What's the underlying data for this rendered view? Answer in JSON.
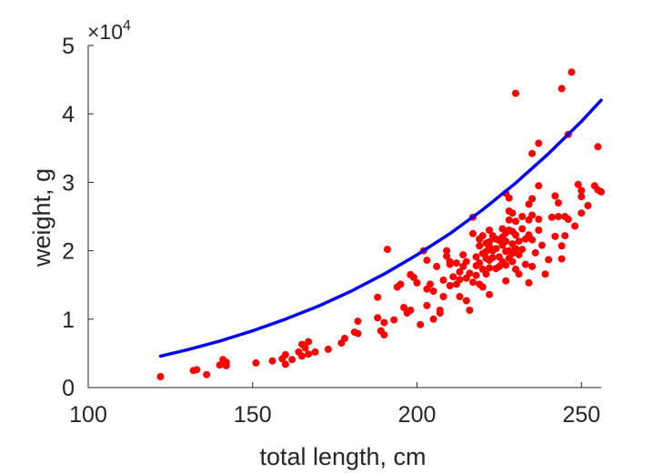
{
  "chart_data": {
    "type": "scatter",
    "xlabel": "total length, cm",
    "ylabel": "weight, g",
    "y_exponent_label": {
      "base": "×10",
      "power": "4"
    },
    "xlim": [
      100,
      256
    ],
    "ylim": [
      0,
      50000
    ],
    "x_ticks": [
      100,
      150,
      200,
      250
    ],
    "y_ticks": [
      0,
      10000,
      20000,
      30000,
      40000,
      50000
    ],
    "y_tick_labels": [
      "0",
      "1",
      "2",
      "3",
      "4",
      "5"
    ],
    "grid": false,
    "colors": {
      "points": "#ff0000",
      "curve": "#0000ff",
      "axis": "#262626"
    },
    "points": [
      [
        122,
        1600
      ],
      [
        132,
        2500
      ],
      [
        133,
        2600
      ],
      [
        136,
        1900
      ],
      [
        140,
        3300
      ],
      [
        141,
        4100
      ],
      [
        142,
        3700
      ],
      [
        142,
        3200
      ],
      [
        151,
        3600
      ],
      [
        156,
        3900
      ],
      [
        159,
        4200
      ],
      [
        160,
        4800
      ],
      [
        160,
        3400
      ],
      [
        162,
        4100
      ],
      [
        164,
        5200
      ],
      [
        165,
        6300
      ],
      [
        165,
        4600
      ],
      [
        166,
        5800
      ],
      [
        167,
        6700
      ],
      [
        167,
        4900
      ],
      [
        169,
        5200
      ],
      [
        173,
        5600
      ],
      [
        177,
        6500
      ],
      [
        178,
        7200
      ],
      [
        181,
        8100
      ],
      [
        182,
        7900
      ],
      [
        182,
        9700
      ],
      [
        188,
        13200
      ],
      [
        188,
        10200
      ],
      [
        189,
        8300
      ],
      [
        190,
        9500
      ],
      [
        190,
        7700
      ],
      [
        191,
        20200
      ],
      [
        193,
        9900
      ],
      [
        194,
        14700
      ],
      [
        195,
        15100
      ],
      [
        196,
        11700
      ],
      [
        197,
        10900
      ],
      [
        198,
        11300
      ],
      [
        198,
        16500
      ],
      [
        199,
        16100
      ],
      [
        200,
        15300
      ],
      [
        201,
        9200
      ],
      [
        202,
        20000
      ],
      [
        203,
        14400
      ],
      [
        203,
        12000
      ],
      [
        203,
        18600
      ],
      [
        204,
        15100
      ],
      [
        205,
        14100
      ],
      [
        205,
        10000
      ],
      [
        206,
        17700
      ],
      [
        207,
        10900
      ],
      [
        207,
        11300
      ],
      [
        208,
        13300
      ],
      [
        208,
        15700
      ],
      [
        209,
        19200
      ],
      [
        209,
        20000
      ],
      [
        210,
        14900
      ],
      [
        210,
        18000
      ],
      [
        210,
        18400
      ],
      [
        211,
        16200
      ],
      [
        212,
        15100
      ],
      [
        212,
        18200
      ],
      [
        213,
        16900
      ],
      [
        213,
        13300
      ],
      [
        213,
        15800
      ],
      [
        214,
        17700
      ],
      [
        214,
        19400
      ],
      [
        215,
        12700
      ],
      [
        215,
        16000
      ],
      [
        215,
        18400
      ],
      [
        216,
        16700
      ],
      [
        216,
        11300
      ],
      [
        217,
        24900
      ],
      [
        217,
        22500
      ],
      [
        217,
        15400
      ],
      [
        218,
        19100
      ],
      [
        218,
        17800
      ],
      [
        218,
        16400
      ],
      [
        219,
        21700
      ],
      [
        219,
        20700
      ],
      [
        219,
        18200
      ],
      [
        219,
        15100
      ],
      [
        220,
        22200
      ],
      [
        220,
        19600
      ],
      [
        220,
        17300
      ],
      [
        220,
        14700
      ],
      [
        221,
        21100
      ],
      [
        221,
        19900
      ],
      [
        221,
        18900
      ],
      [
        221,
        16600
      ],
      [
        222,
        23000
      ],
      [
        222,
        21300
      ],
      [
        222,
        20600
      ],
      [
        222,
        18600
      ],
      [
        222,
        17500
      ],
      [
        222,
        13600
      ],
      [
        223,
        22200
      ],
      [
        223,
        20000
      ],
      [
        223,
        19000
      ],
      [
        224,
        21700
      ],
      [
        224,
        20300
      ],
      [
        224,
        17400
      ],
      [
        225,
        21500
      ],
      [
        225,
        19100
      ],
      [
        225,
        17700
      ],
      [
        226,
        23200
      ],
      [
        226,
        22000
      ],
      [
        226,
        20800
      ],
      [
        226,
        18400
      ],
      [
        227,
        28400
      ],
      [
        227,
        22600
      ],
      [
        227,
        21400
      ],
      [
        227,
        19900
      ],
      [
        227,
        17900
      ],
      [
        227,
        15600
      ],
      [
        228,
        27700
      ],
      [
        228,
        25800
      ],
      [
        228,
        24500
      ],
      [
        228,
        23000
      ],
      [
        228,
        20000
      ],
      [
        228,
        18900
      ],
      [
        229,
        25500
      ],
      [
        229,
        22800
      ],
      [
        229,
        21000
      ],
      [
        229,
        19600
      ],
      [
        229,
        18400
      ],
      [
        230,
        43000
      ],
      [
        230,
        24300
      ],
      [
        230,
        22300
      ],
      [
        230,
        20300
      ],
      [
        230,
        17300
      ],
      [
        231,
        21400
      ],
      [
        231,
        19400
      ],
      [
        231,
        16600
      ],
      [
        232,
        25000
      ],
      [
        232,
        23200
      ],
      [
        232,
        20200
      ],
      [
        233,
        21700
      ],
      [
        233,
        18000
      ],
      [
        234,
        26800
      ],
      [
        234,
        24500
      ],
      [
        234,
        22300
      ],
      [
        234,
        15300
      ],
      [
        235,
        34200
      ],
      [
        235,
        27600
      ],
      [
        235,
        25200
      ],
      [
        235,
        21600
      ],
      [
        235,
        17700
      ],
      [
        236,
        19700
      ],
      [
        237,
        35700
      ],
      [
        237,
        29500
      ],
      [
        237,
        24600
      ],
      [
        237,
        23000
      ],
      [
        238,
        20800
      ],
      [
        239,
        16600
      ],
      [
        240,
        18700
      ],
      [
        241,
        24900
      ],
      [
        242,
        28000
      ],
      [
        242,
        22100
      ],
      [
        243,
        27000
      ],
      [
        243,
        25000
      ],
      [
        244,
        43700
      ],
      [
        244,
        20700
      ],
      [
        244,
        18800
      ],
      [
        245,
        25000
      ],
      [
        245,
        22200
      ],
      [
        246,
        37000
      ],
      [
        246,
        24600
      ],
      [
        247,
        46100
      ],
      [
        248,
        23600
      ],
      [
        249,
        29700
      ],
      [
        250,
        28800
      ],
      [
        250,
        27900
      ],
      [
        250,
        25500
      ],
      [
        252,
        26600
      ],
      [
        254,
        29500
      ],
      [
        255,
        35200
      ],
      [
        255,
        28900
      ],
      [
        256,
        28600
      ]
    ],
    "fit_curve": {
      "x": [
        122,
        130,
        140,
        150,
        160,
        170,
        180,
        190,
        200,
        210,
        220,
        230,
        240,
        250,
        256
      ],
      "y": [
        4600,
        5500,
        6800,
        8300,
        10000,
        11900,
        14100,
        16600,
        19400,
        22500,
        26000,
        29900,
        34200,
        38900,
        42000
      ]
    }
  }
}
